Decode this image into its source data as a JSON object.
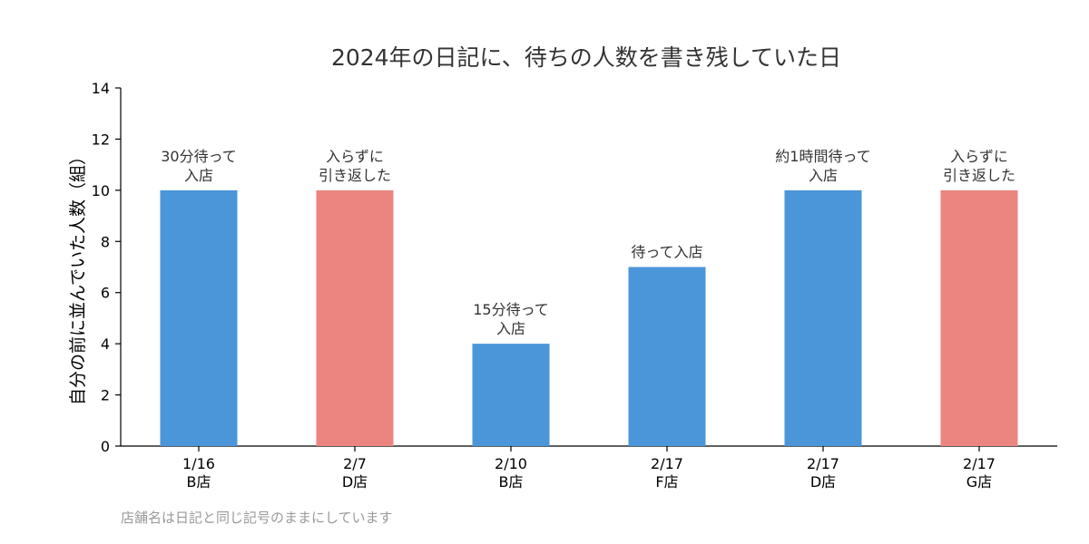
{
  "chart_data": {
    "type": "bar",
    "title": "2024年の日記に、待ちの人数を書き残していた日",
    "ylabel": "自分の前に並んでいた人数（組）",
    "xlabel": "",
    "ylim": [
      0,
      14
    ],
    "yticks": [
      0,
      2,
      4,
      6,
      8,
      10,
      12,
      14
    ],
    "grid": false,
    "categories": [
      [
        "1/16",
        "B店"
      ],
      [
        "2/7",
        "D店"
      ],
      [
        "2/10",
        "B店"
      ],
      [
        "2/17",
        "F店"
      ],
      [
        "2/17",
        "D店"
      ],
      [
        "2/17",
        "G店"
      ]
    ],
    "values": [
      10,
      10,
      4,
      7,
      10,
      10
    ],
    "bar_labels": [
      [
        "30分待って",
        "入店"
      ],
      [
        "入らずに",
        "引き返した"
      ],
      [
        "15分待って",
        "入店"
      ],
      [
        "待って入店"
      ],
      [
        "約1時間待って",
        "入店"
      ],
      [
        "入らずに",
        "引き返した"
      ]
    ],
    "colors": [
      "#4a96d9",
      "#ec8480",
      "#4a96d9",
      "#4a96d9",
      "#4a96d9",
      "#ec8480"
    ],
    "footnote": "店舗名は日記と同じ記号のままにしています"
  }
}
